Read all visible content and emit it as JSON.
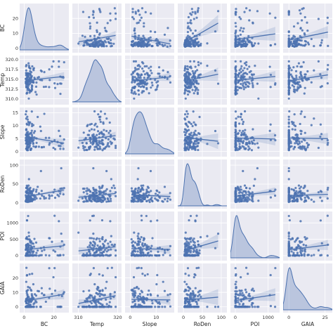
{
  "chart_data": {
    "type": "scatter",
    "variables": [
      "BC",
      "Temp",
      "Slope",
      "RoDen",
      "POI",
      "GAIA"
    ],
    "xlabels": [
      "BC",
      "Temp",
      "Slope",
      "RoDen",
      "POI",
      "GAIA"
    ],
    "ylabels": [
      "BC",
      "Temp",
      "Slope",
      "RoDen",
      "POI",
      "GAIA"
    ],
    "ranges": {
      "BC": [
        -3,
        30
      ],
      "Temp": [
        308.5,
        321
      ],
      "Slope": [
        -2,
        17
      ],
      "RoDen": [
        -15,
        115
      ],
      "POI": [
        -150,
        1350
      ],
      "GAIA": [
        -4,
        30
      ]
    },
    "xticks": {
      "BC": [
        0,
        20
      ],
      "Temp": [
        310,
        320
      ],
      "Slope": [
        0,
        10
      ],
      "RoDen": [
        0,
        50,
        100
      ],
      "POI": [
        0,
        1000
      ],
      "GAIA": [
        0,
        25
      ]
    },
    "xtick_labels": {
      "BC": [
        "0",
        "20"
      ],
      "Temp": [
        "310",
        "320"
      ],
      "Slope": [
        "0",
        "10"
      ],
      "RoDen": [
        "0",
        "50",
        "100"
      ],
      "POI": [
        "0",
        "1000"
      ],
      "GAIA": [
        "0",
        "25"
      ]
    },
    "yticks": {
      "BC": [
        0,
        10,
        20
      ],
      "Temp": [
        310,
        312.5,
        315,
        317.5,
        320
      ],
      "Slope": [
        0,
        5,
        10,
        15
      ],
      "RoDen": [
        0,
        50,
        100
      ],
      "POI": [
        0,
        500,
        1000
      ],
      "GAIA": [
        0,
        10,
        20
      ]
    },
    "ytick_labels": {
      "BC": [
        "0",
        "10",
        "20"
      ],
      "Temp": [
        "310.0",
        "312.5",
        "315.0",
        "317.5",
        "320.0"
      ],
      "Slope": [
        "0",
        "5",
        "10",
        "15"
      ],
      "RoDen": [
        "0",
        "50",
        "100"
      ],
      "POI": [
        "0",
        "500",
        "1000"
      ],
      "GAIA": [
        "0",
        "10",
        "20"
      ]
    },
    "regression": true,
    "diagonal": "kde",
    "grid": true,
    "point_color": "#4c72b0",
    "background_color": "#eaeaf2",
    "grid_color": "#ffffff",
    "watermark": "https://blog.csdn.net/..."
  }
}
